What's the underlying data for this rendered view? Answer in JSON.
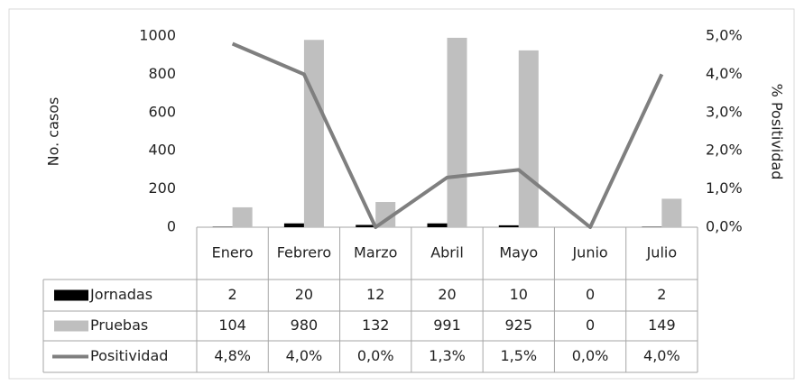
{
  "chart_data": {
    "type": "bar-line-table",
    "y_label": "No. casos",
    "y2_label": "% Positividad",
    "categories": [
      "Enero",
      "Febrero",
      "Marzo",
      "Abril",
      "Mayo",
      "Junio",
      "Julio"
    ],
    "series": [
      {
        "name": "Jornadas",
        "color": "#000000",
        "kind": "bar",
        "values": [
          2,
          20,
          12,
          20,
          10,
          0,
          2
        ]
      },
      {
        "name": "Pruebas",
        "color": "#bfbfbf",
        "kind": "bar",
        "values": [
          104,
          980,
          132,
          991,
          925,
          0,
          149
        ]
      },
      {
        "name": "Positividad",
        "color": "#7f7f7f",
        "kind": "line",
        "axis": "y2",
        "values": [
          4.8,
          4.0,
          0.0,
          1.3,
          1.5,
          0.0,
          4.0
        ],
        "value_labels": [
          "4,8%",
          "4,0%",
          "0,0%",
          "1,3%",
          "1,5%",
          "0,0%",
          "4,0%"
        ]
      }
    ],
    "ylim": [
      0,
      1000
    ],
    "yticks": [
      0,
      200,
      400,
      600,
      800,
      1000
    ],
    "y2lim": [
      0,
      5
    ],
    "y2ticks": [
      {
        "value": 0,
        "label": "0,0%"
      },
      {
        "value": 1,
        "label": "1,0%"
      },
      {
        "value": 2,
        "label": "2,0%"
      },
      {
        "value": 3,
        "label": "3,0%"
      },
      {
        "value": 4,
        "label": "4,0%"
      },
      {
        "value": 5,
        "label": "5,0%"
      }
    ],
    "grid": false,
    "data_table": true
  }
}
